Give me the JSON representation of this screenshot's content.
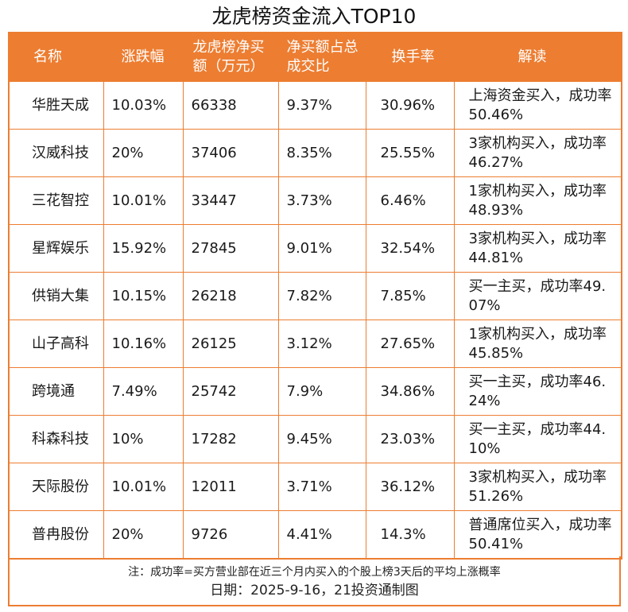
{
  "title": "龙虎榜资金流入TOP10",
  "headers": {
    "name": "名称",
    "change": "涨跌幅",
    "net_buy": "龙虎榜净买额（万元）",
    "ratio": "净买额占总成交比",
    "turnover": "换手率",
    "analysis": "解读"
  },
  "rows": [
    {
      "name": "华胜天成",
      "change": "10.03%",
      "net_buy": "66338",
      "ratio": "9.37%",
      "turnover": "30.96%",
      "analysis": "上海资金买入，成功率50.46%"
    },
    {
      "name": "汉威科技",
      "change": "20%",
      "net_buy": "37406",
      "ratio": "8.35%",
      "turnover": "25.55%",
      "analysis": "3家机构买入，成功率46.27%"
    },
    {
      "name": "三花智控",
      "change": "10.01%",
      "net_buy": "33447",
      "ratio": "3.73%",
      "turnover": "6.46%",
      "analysis": "1家机构买入，成功率48.93%"
    },
    {
      "name": "星辉娱乐",
      "change": "15.92%",
      "net_buy": "27845",
      "ratio": "9.01%",
      "turnover": "32.54%",
      "analysis": "3家机构买入，成功率44.81%"
    },
    {
      "name": "供销大集",
      "change": "10.15%",
      "net_buy": "26218",
      "ratio": "7.82%",
      "turnover": "7.85%",
      "analysis": "买一主买，成功率49.07%"
    },
    {
      "name": "山子高科",
      "change": "10.16%",
      "net_buy": "26125",
      "ratio": "3.12%",
      "turnover": "27.65%",
      "analysis": "1家机构买入，成功率45.85%"
    },
    {
      "name": "跨境通",
      "change": "7.49%",
      "net_buy": "25742",
      "ratio": "7.9%",
      "turnover": "34.86%",
      "analysis": "买一主买，成功率46.24%"
    },
    {
      "name": "科森科技",
      "change": "10%",
      "net_buy": "17282",
      "ratio": "9.45%",
      "turnover": "23.03%",
      "analysis": "买一主买，成功率44.10%"
    },
    {
      "name": "天际股份",
      "change": "10.01%",
      "net_buy": "12011",
      "ratio": "3.71%",
      "turnover": "36.12%",
      "analysis": "3家机构买入，成功率51.26%"
    },
    {
      "name": "普冉股份",
      "change": "20%",
      "net_buy": "9726",
      "ratio": "4.41%",
      "turnover": "14.3%",
      "analysis": "普通席位买入，成功率50.41%"
    }
  ],
  "footer": {
    "note": "注：成功率=买方营业部在近三个月内买入的个股上榜3天后的平均上涨概率",
    "date": "日期：2025-9-16，21投资通制图"
  },
  "colors": {
    "accent": "#ed7d31",
    "header_text": "#ffffff"
  }
}
